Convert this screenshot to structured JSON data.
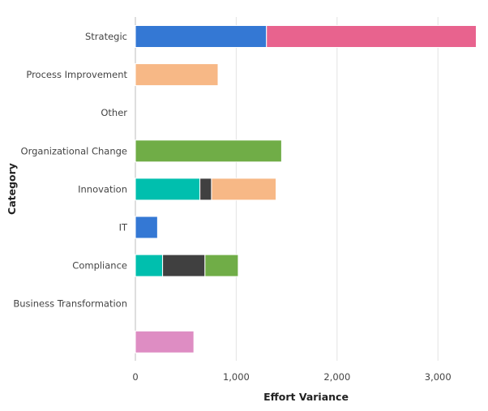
{
  "chart_data": {
    "type": "bar",
    "orientation": "horizontal",
    "stacked": true,
    "categories": [
      "Strategic",
      "Process Improvement",
      "Other",
      "Organizational Change",
      "Innovation",
      "IT",
      "Compliance",
      "Business Transformation",
      ""
    ],
    "series": [
      {
        "color": "#3478D4",
        "values": [
          1300,
          0,
          0,
          0,
          0,
          220,
          0,
          0,
          0
        ]
      },
      {
        "color": "#00BFAE",
        "values": [
          0,
          0,
          0,
          0,
          640,
          0,
          270,
          0,
          0
        ]
      },
      {
        "color": "#404040",
        "values": [
          0,
          0,
          0,
          0,
          115,
          0,
          420,
          0,
          0
        ]
      },
      {
        "color": "#F7B886",
        "values": [
          0,
          820,
          0,
          0,
          640,
          0,
          0,
          0,
          0
        ]
      },
      {
        "color": "#70AD47",
        "values": [
          0,
          0,
          0,
          1450,
          0,
          0,
          330,
          0,
          0
        ]
      },
      {
        "color": "#E8638E",
        "values": [
          2080,
          0,
          0,
          0,
          0,
          0,
          0,
          0,
          0
        ]
      },
      {
        "color": "#DE8DC3",
        "values": [
          0,
          0,
          0,
          0,
          0,
          0,
          0,
          0,
          580
        ]
      }
    ],
    "xlabel": "Effort Variance",
    "ylabel": "Category",
    "xlim": [
      0,
      3400
    ],
    "xticks": [
      0,
      1000,
      2000,
      3000
    ],
    "xtick_labels": [
      "0",
      "1,000",
      "2,000",
      "3,000"
    ],
    "grid": true,
    "legend": "none"
  }
}
